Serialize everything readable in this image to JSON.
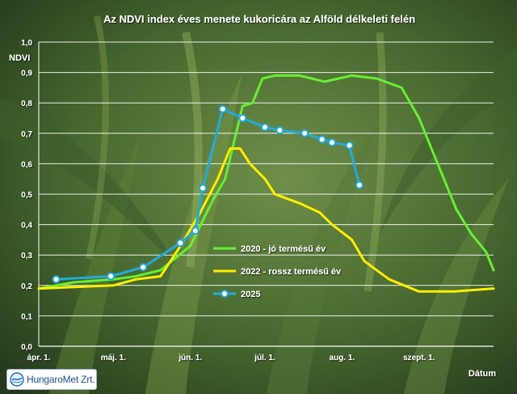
{
  "chart_data": {
    "type": "line",
    "title": "Az NDVI index éves menete kukoricára az Alföld délkeleti felén",
    "ylabel": "NDVI",
    "xlabel": "Dátum",
    "ylim": [
      0,
      1
    ],
    "yticks": [
      "0,0",
      "0,1",
      "0,2",
      "0,3",
      "0,4",
      "0,5",
      "0,6",
      "0,7",
      "0,8",
      "0,9",
      "1,0"
    ],
    "xlim": [
      "2000-04-01",
      "2000-10-01"
    ],
    "xticks": [
      {
        "label": "ápr. 1.",
        "date": "2000-04-01"
      },
      {
        "label": "máj. 1.",
        "date": "2000-05-01"
      },
      {
        "label": "jún. 1.",
        "date": "2000-06-01"
      },
      {
        "label": "júl. 1.",
        "date": "2000-07-01"
      },
      {
        "label": "aug. 1.",
        "date": "2000-08-01"
      },
      {
        "label": "szept. 1.",
        "date": "2000-09-01"
      }
    ],
    "grid": true,
    "legend_position": "lower-center",
    "series": [
      {
        "name": "2020 - jó termésű év",
        "color": "#66ee33",
        "marker": "none",
        "points": [
          [
            "2000-04-01",
            0.19
          ],
          [
            "2000-04-15",
            0.21
          ],
          [
            "2000-05-01",
            0.22
          ],
          [
            "2000-05-10",
            0.23
          ],
          [
            "2000-05-20",
            0.25
          ],
          [
            "2000-06-01",
            0.33
          ],
          [
            "2000-06-10",
            0.48
          ],
          [
            "2000-06-15",
            0.55
          ],
          [
            "2000-06-22",
            0.79
          ],
          [
            "2000-06-26",
            0.8
          ],
          [
            "2000-06-30",
            0.88
          ],
          [
            "2000-07-05",
            0.89
          ],
          [
            "2000-07-15",
            0.89
          ],
          [
            "2000-07-25",
            0.87
          ],
          [
            "2000-08-05",
            0.89
          ],
          [
            "2000-08-15",
            0.88
          ],
          [
            "2000-08-25",
            0.85
          ],
          [
            "2000-09-01",
            0.75
          ],
          [
            "2000-09-06",
            0.65
          ],
          [
            "2000-09-11",
            0.55
          ],
          [
            "2000-09-16",
            0.45
          ],
          [
            "2000-09-22",
            0.37
          ],
          [
            "2000-09-28",
            0.31
          ],
          [
            "2000-10-01",
            0.25
          ]
        ]
      },
      {
        "name": "2022 - rossz termésű év",
        "color": "#ffee00",
        "marker": "none",
        "points": [
          [
            "2000-04-01",
            0.19
          ],
          [
            "2000-05-01",
            0.2
          ],
          [
            "2000-05-10",
            0.22
          ],
          [
            "2000-05-20",
            0.23
          ],
          [
            "2000-05-28",
            0.33
          ],
          [
            "2000-06-05",
            0.44
          ],
          [
            "2000-06-12",
            0.55
          ],
          [
            "2000-06-17",
            0.65
          ],
          [
            "2000-06-21",
            0.65
          ],
          [
            "2000-06-25",
            0.6
          ],
          [
            "2000-07-01",
            0.55
          ],
          [
            "2000-07-05",
            0.5
          ],
          [
            "2000-07-15",
            0.47
          ],
          [
            "2000-07-23",
            0.44
          ],
          [
            "2000-07-28",
            0.4
          ],
          [
            "2000-08-05",
            0.35
          ],
          [
            "2000-08-10",
            0.28
          ],
          [
            "2000-08-20",
            0.22
          ],
          [
            "2000-09-01",
            0.18
          ],
          [
            "2000-09-15",
            0.18
          ],
          [
            "2000-10-01",
            0.19
          ]
        ]
      },
      {
        "name": "2025",
        "color": "#22aadd",
        "marker": "circle",
        "points": [
          [
            "2000-04-08",
            0.22
          ],
          [
            "2000-04-30",
            0.23
          ],
          [
            "2000-05-13",
            0.26
          ],
          [
            "2000-05-28",
            0.34
          ],
          [
            "2000-06-03",
            0.38
          ],
          [
            "2000-06-06",
            0.52
          ],
          [
            "2000-06-14",
            0.78
          ],
          [
            "2000-06-22",
            0.75
          ],
          [
            "2000-07-01",
            0.72
          ],
          [
            "2000-07-07",
            0.71
          ],
          [
            "2000-07-17",
            0.7
          ],
          [
            "2000-07-24",
            0.68
          ],
          [
            "2000-07-28",
            0.67
          ],
          [
            "2000-08-04",
            0.66
          ],
          [
            "2000-08-08",
            0.53
          ]
        ]
      }
    ]
  },
  "logo": {
    "text": "HungaroMet Zrt."
  }
}
